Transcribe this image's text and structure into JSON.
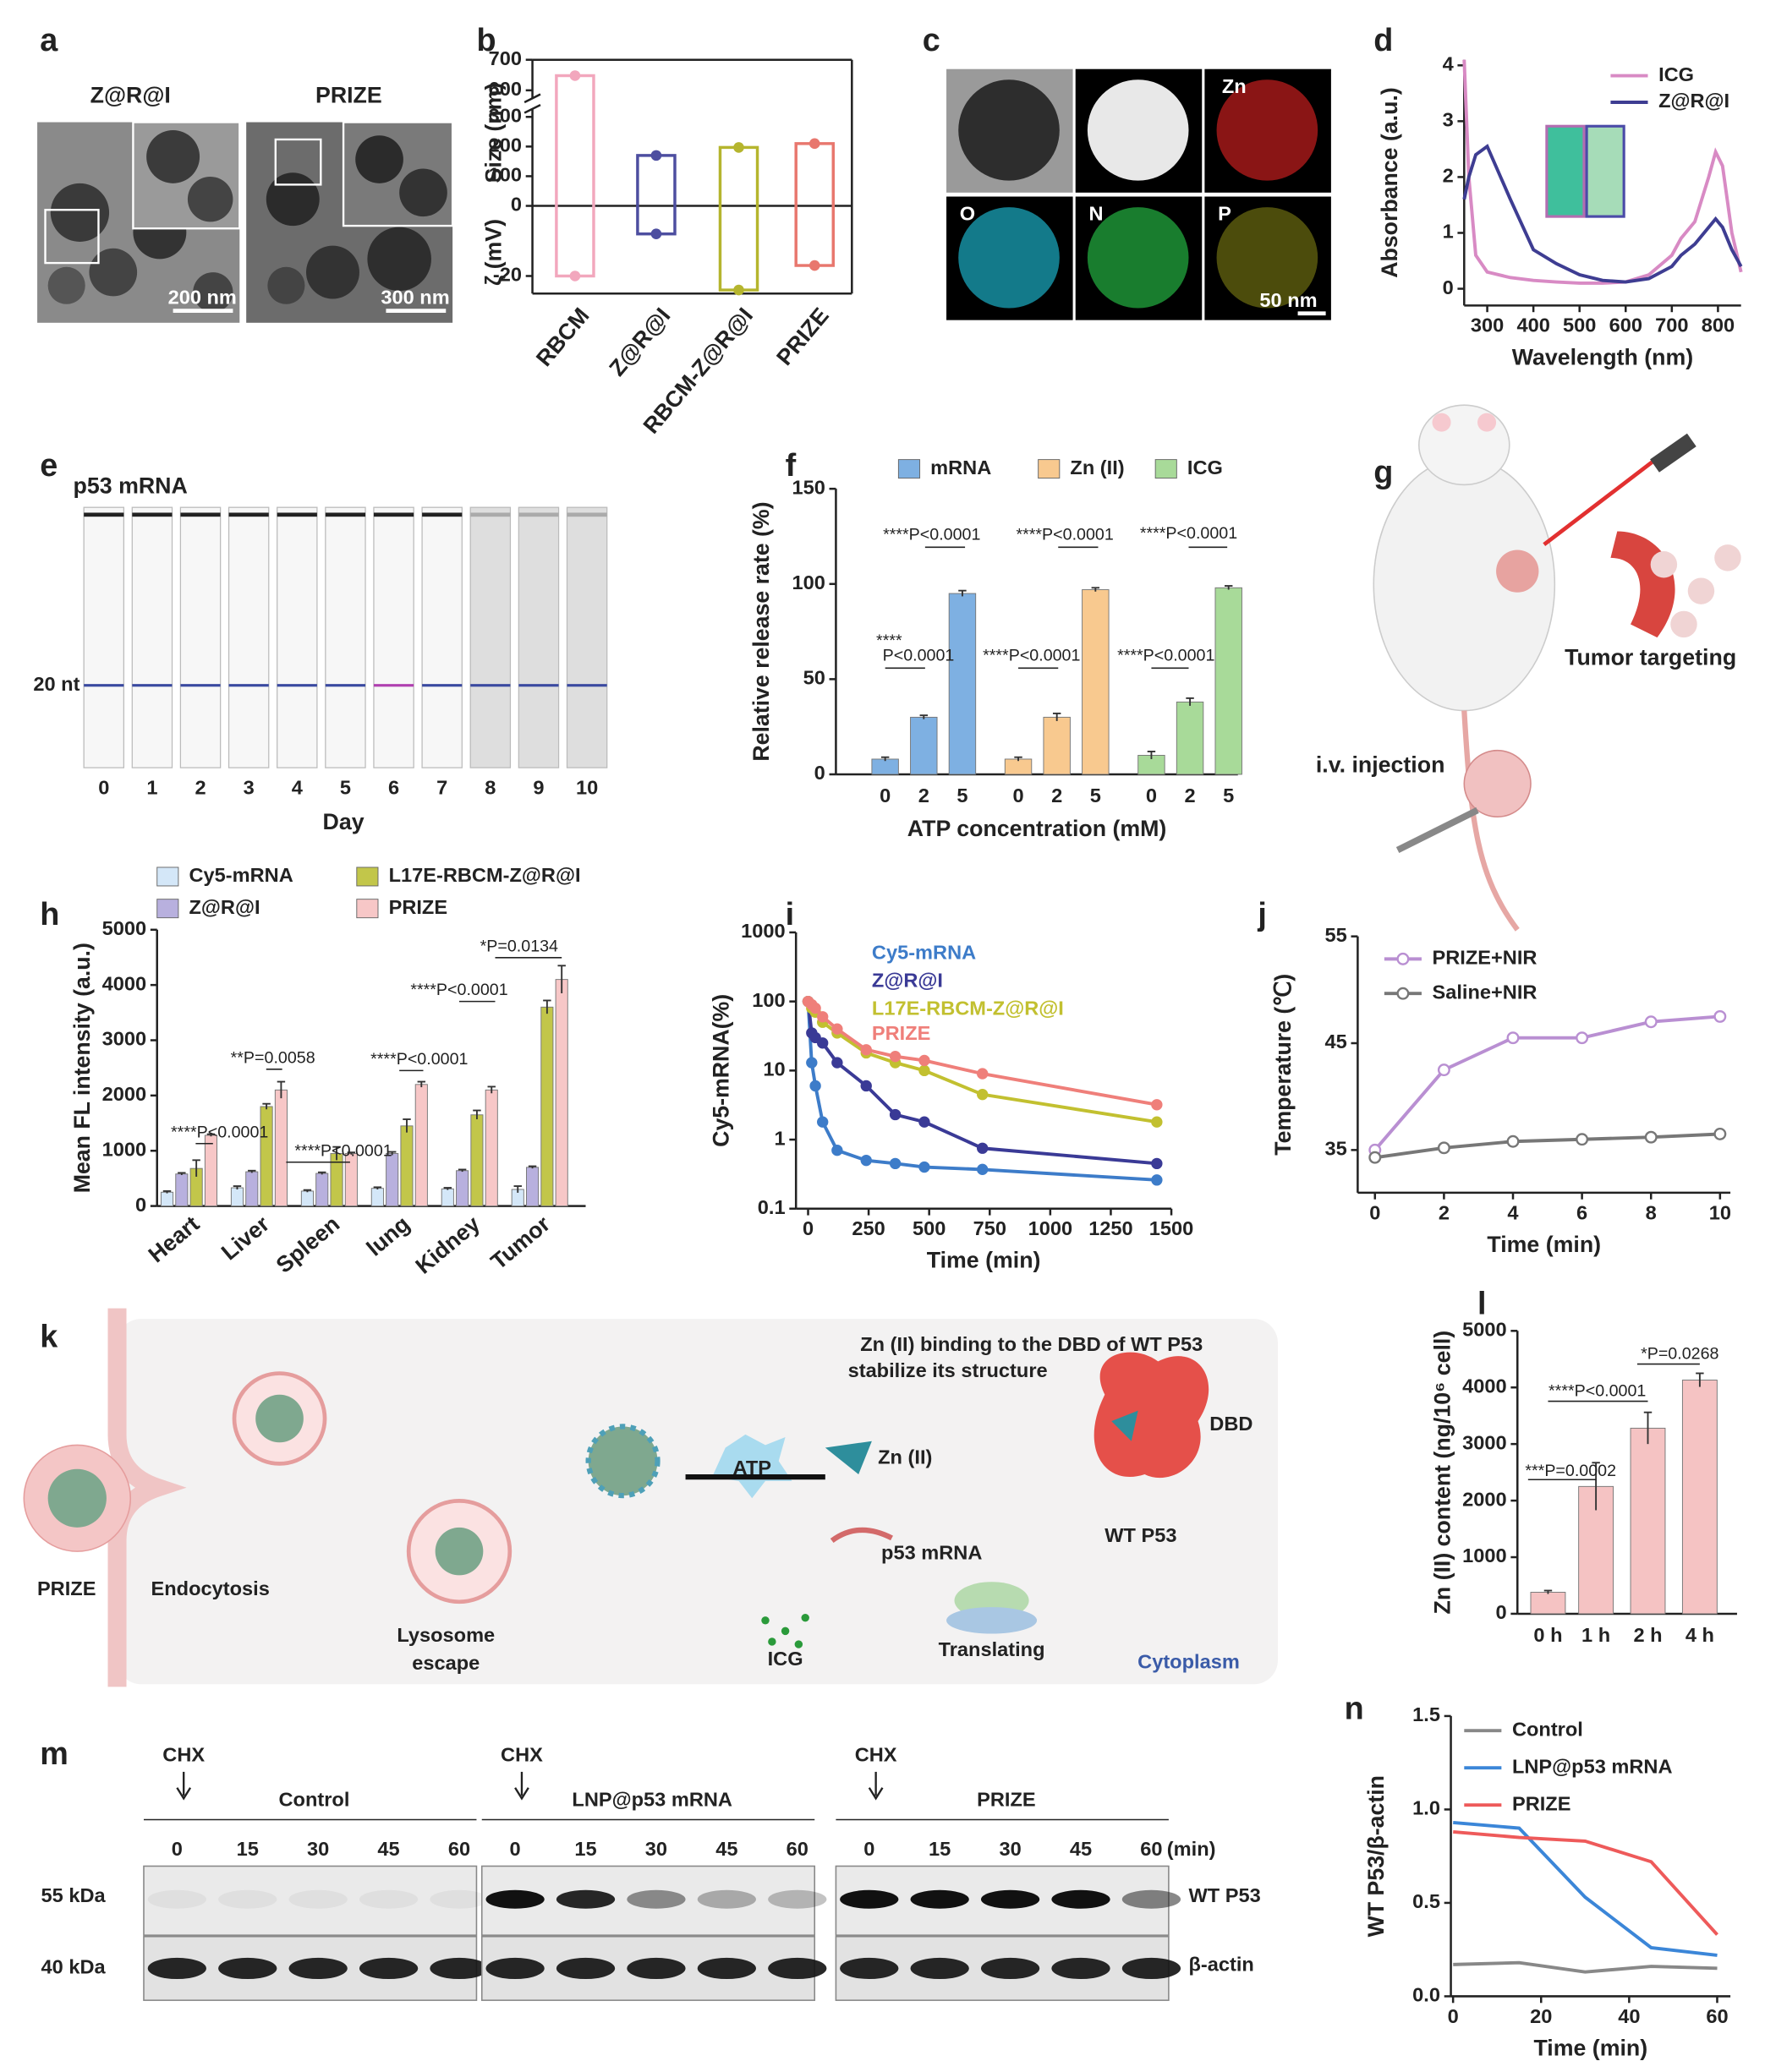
{
  "panel_letters": [
    "a",
    "b",
    "c",
    "d",
    "e",
    "f",
    "g",
    "h",
    "i",
    "j",
    "k",
    "l",
    "m",
    "n"
  ],
  "panels": {
    "a": {
      "titles": [
        "Z@R@I",
        "PRIZE"
      ],
      "scale_bars": [
        "200 nm",
        "300 nm"
      ]
    },
    "c": {
      "channels": [
        "Zn",
        "O",
        "N",
        "P"
      ],
      "scale_bar": "50 nm"
    },
    "e": {
      "title": "p53 mRNA",
      "marker": "20 nt",
      "lanes": [
        "0",
        "1",
        "2",
        "3",
        "4",
        "5",
        "6",
        "7",
        "8",
        "9",
        "10"
      ],
      "xlabel": "Day"
    },
    "g": {
      "labels": [
        "Tumor targeting",
        "i.v. injection"
      ]
    },
    "k": {
      "labels": [
        "Zn (II) binding to the DBD of WT P53",
        "stabilize its structure",
        "Zn (II)",
        "DBD",
        "ATP",
        "p53 mRNA",
        "WT P53",
        "PRIZE",
        "Endocytosis",
        "Lysosome",
        "escape",
        "ICG",
        "Translating",
        "Cytoplasm"
      ]
    },
    "m": {
      "groups": [
        {
          "treatment": "CHX",
          "name": "Control",
          "times": [
            "0",
            "15",
            "30",
            "45",
            "60"
          ]
        },
        {
          "treatment": "CHX",
          "name": "LNP@p53 mRNA",
          "times": [
            "0",
            "15",
            "30",
            "45",
            "60"
          ]
        },
        {
          "treatment": "CHX",
          "name": "PRIZE",
          "times": [
            "0",
            "15",
            "30",
            "45",
            "60"
          ]
        }
      ],
      "unit": "(min)",
      "sizes": [
        "55 kDa",
        "40 kDa"
      ],
      "rows": [
        "WT P53",
        "β-actin"
      ]
    }
  },
  "chart_data": [
    {
      "type": "box",
      "categories": [
        "RBCM",
        "Z@R@I",
        "RBCM-Z@R@I",
        "PRIZE"
      ],
      "series": [
        {
          "name": "Size (nm)",
          "values": [
            648,
            170,
            197,
            210
          ]
        },
        {
          "name": "ζ (mV)",
          "values": [
            -20,
            -8,
            -24,
            -17
          ]
        }
      ],
      "colors": [
        "#f2a7bd",
        "#4d4ea0",
        "#b5b52e",
        "#e8776e"
      ],
      "ylim": [
        -25,
        700
      ],
      "yticks": [
        -20,
        0,
        100,
        200,
        300,
        600,
        700
      ],
      "ybreak": [
        300,
        600
      ]
    },
    {
      "type": "line",
      "xlabel": "Wavelength (nm)",
      "ylabel": "Absorbance (a.u.)",
      "x": [
        250,
        260,
        275,
        300,
        350,
        400,
        450,
        500,
        550,
        600,
        650,
        700,
        720,
        750,
        780,
        795,
        810,
        830,
        850
      ],
      "series": [
        {
          "name": "ICG",
          "color": "#d88ac4",
          "values": [
            4.1,
            2.0,
            0.6,
            0.3,
            0.2,
            0.15,
            0.12,
            0.1,
            0.1,
            0.12,
            0.25,
            0.6,
            0.9,
            1.2,
            2.0,
            2.45,
            2.2,
            1.0,
            0.3
          ]
        },
        {
          "name": "Z@R@I",
          "color": "#3e3d92",
          "values": [
            1.6,
            2.0,
            2.4,
            2.55,
            1.6,
            0.7,
            0.45,
            0.25,
            0.15,
            0.12,
            0.18,
            0.4,
            0.6,
            0.8,
            1.1,
            1.25,
            1.1,
            0.7,
            0.4
          ]
        }
      ],
      "xlim": [
        250,
        850
      ],
      "xticks": [
        300,
        400,
        500,
        600,
        700,
        800
      ],
      "ylim": [
        -0.3,
        4.1
      ],
      "yticks": [
        0,
        1,
        2,
        3,
        4
      ]
    },
    {
      "type": "bar",
      "xlabel": "ATP concentration (mM)",
      "ylabel": "Relative release rate (%)",
      "categories": [
        "0",
        "2",
        "5"
      ],
      "series": [
        {
          "name": "mRNA",
          "color": "#7eb0e2",
          "values": [
            8,
            30,
            95
          ],
          "errors": [
            1,
            1,
            1.5
          ]
        },
        {
          "name": "Zn (II)",
          "color": "#f8c98f",
          "values": [
            8,
            30,
            97
          ],
          "errors": [
            1,
            2,
            1
          ]
        },
        {
          "name": "ICG",
          "color": "#a8da99",
          "values": [
            10,
            38,
            98
          ],
          "errors": [
            2,
            2,
            1
          ]
        }
      ],
      "ylim": [
        0,
        150
      ],
      "yticks": [
        0,
        50,
        100,
        150
      ],
      "annotations": [
        "****P<0.0001",
        "****P<0.0001",
        "****P<0.0001",
        "****",
        "P<0.0001",
        "****P<0.0001",
        "****P<0.0001"
      ]
    },
    {
      "type": "bar",
      "ylabel": "Mean FL intensity (a.u.)",
      "categories": [
        "Heart",
        "Liver",
        "Spleen",
        "lung",
        "Kidney",
        "Tumor"
      ],
      "series": [
        {
          "name": "Cy5-mRNA",
          "color": "#d4e7f8",
          "values": [
            250,
            330,
            270,
            320,
            310,
            300
          ],
          "errors": [
            20,
            30,
            20,
            20,
            20,
            60
          ]
        },
        {
          "name": "Z@R@I",
          "color": "#b8b0de",
          "values": [
            580,
            620,
            590,
            950,
            640,
            700
          ],
          "errors": [
            20,
            20,
            20,
            30,
            20,
            20
          ]
        },
        {
          "name": "L17E-RBCM-Z@R@I",
          "color": "#c2c64a",
          "values": [
            680,
            1800,
            950,
            1450,
            1650,
            3600
          ],
          "errors": [
            150,
            50,
            120,
            120,
            80,
            120
          ]
        },
        {
          "name": "PRIZE",
          "color": "#f7c7c7",
          "values": [
            1280,
            2100,
            950,
            2200,
            2100,
            4100
          ],
          "errors": [
            20,
            150,
            20,
            50,
            60,
            250
          ]
        }
      ],
      "ylim": [
        0,
        5000
      ],
      "yticks": [
        0,
        1000,
        2000,
        3000,
        4000,
        5000
      ],
      "annotations": [
        "****P<0.0001",
        "**P=0.0058",
        "****P<0.0001",
        "****P<0.0001",
        "****P<0.0001",
        "*P=0.0134"
      ]
    },
    {
      "type": "line",
      "xlabel": "Time (min)",
      "ylabel": "Cy5-mRNA(%)",
      "log_y": true,
      "markers": true,
      "x": [
        0,
        15,
        30,
        60,
        120,
        240,
        360,
        480,
        720,
        1440
      ],
      "series": [
        {
          "name": "Cy5-mRNA",
          "color": "#3d7cc9",
          "values": [
            100,
            13,
            6,
            1.8,
            0.7,
            0.5,
            0.45,
            0.4,
            0.37,
            0.26
          ]
        },
        {
          "name": "Z@R@I",
          "color": "#3a3a96",
          "values": [
            100,
            35,
            30,
            25,
            13,
            6,
            2.3,
            1.8,
            0.75,
            0.45
          ]
        },
        {
          "name": "L17E-RBCM-Z@R@I",
          "color": "#c2c030",
          "values": [
            100,
            80,
            70,
            50,
            35,
            18,
            13,
            10,
            4.5,
            1.8
          ]
        },
        {
          "name": "PRIZE",
          "color": "#ef7f7a",
          "values": [
            100,
            90,
            80,
            60,
            40,
            20,
            16,
            14,
            9,
            3.2
          ]
        }
      ],
      "xlim": [
        -50,
        1500
      ],
      "xticks": [
        0,
        250,
        500,
        750,
        1000,
        1250,
        1500
      ],
      "ylim": [
        0.1,
        1000
      ],
      "yticks": [
        0.1,
        1,
        10,
        100,
        1000
      ]
    },
    {
      "type": "line",
      "xlabel": "Time (min)",
      "ylabel": "Temperature (℃)",
      "markers": true,
      "x": [
        0,
        2,
        4,
        6,
        8,
        10
      ],
      "series": [
        {
          "name": "PRIZE+NIR",
          "color": "#b98fd2",
          "values": [
            35,
            42.5,
            45.5,
            45.5,
            47,
            47.5
          ]
        },
        {
          "name": "Saline+NIR",
          "color": "#777777",
          "values": [
            34.3,
            35.2,
            35.8,
            36,
            36.2,
            36.5
          ]
        }
      ],
      "xlim": [
        -0.5,
        10.3
      ],
      "xticks": [
        0,
        2,
        4,
        6,
        8,
        10
      ],
      "ylim": [
        31,
        55
      ],
      "yticks": [
        35,
        45,
        55
      ]
    },
    {
      "type": "bar",
      "ylabel": "Zn (II) content (ng/10⁶ cell)",
      "categories": [
        "0 h",
        "1 h",
        "2 h",
        "4 h"
      ],
      "values": [
        380,
        2250,
        3280,
        4130
      ],
      "errors": [
        30,
        420,
        280,
        120
      ],
      "color": "#f5c3c3",
      "ylim": [
        0,
        5000
      ],
      "yticks": [
        0,
        1000,
        2000,
        3000,
        4000,
        5000
      ],
      "annotations": [
        "***P=0.0002",
        "****P<0.0001",
        "*P=0.0268"
      ]
    },
    {
      "type": "line",
      "xlabel": "Time (min)",
      "ylabel": "WT P53/β-actin",
      "x": [
        0,
        15,
        30,
        45,
        60
      ],
      "series": [
        {
          "name": "Control",
          "color": "#888888",
          "values": [
            0.17,
            0.18,
            0.13,
            0.16,
            0.15
          ]
        },
        {
          "name": "LNP@p53 mRNA",
          "color": "#3b86d8",
          "values": [
            0.93,
            0.9,
            0.53,
            0.26,
            0.22
          ]
        },
        {
          "name": "PRIZE",
          "color": "#ee5a5a",
          "values": [
            0.88,
            0.85,
            0.83,
            0.72,
            0.33
          ]
        }
      ],
      "xlim": [
        -0.5,
        63
      ],
      "xticks": [
        0,
        20,
        40,
        60
      ],
      "ylim": [
        0,
        1.5
      ],
      "yticks": [
        {
          "value": 0,
          "label": "0.0"
        },
        0.5,
        {
          "value": 1,
          "label": "1.0"
        },
        1.5
      ]
    }
  ]
}
